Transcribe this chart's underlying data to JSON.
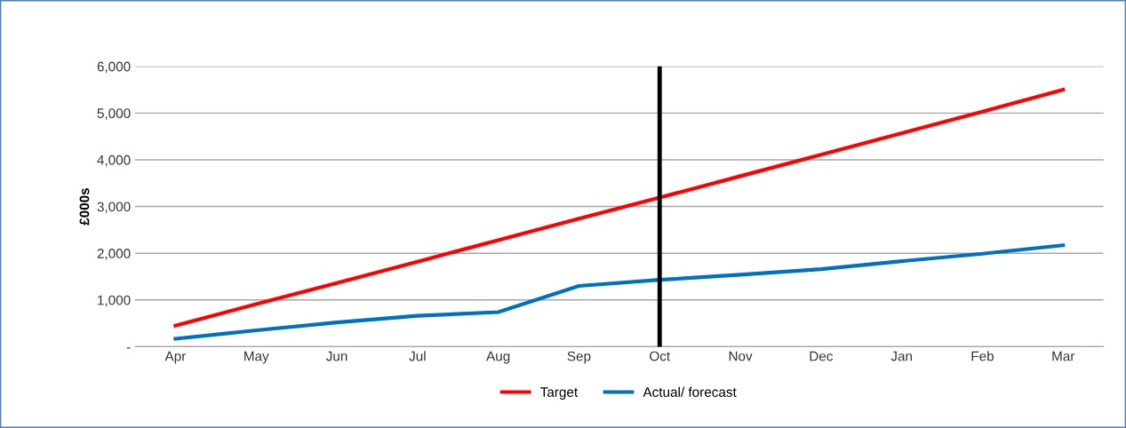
{
  "chart_data": {
    "type": "line",
    "ylabel": "£000s",
    "categories": [
      "Apr",
      "May",
      "Jun",
      "Jul",
      "Aug",
      "Sep",
      "Oct",
      "Nov",
      "Dec",
      "Jan",
      "Feb",
      "Mar"
    ],
    "series": [
      {
        "name": "Target",
        "color": "#ff0000",
        "values": [
          450,
          910,
          1360,
          1820,
          2280,
          2740,
          3190,
          3650,
          4110,
          4570,
          5030,
          5500
        ]
      },
      {
        "name": "Actual/ forecast",
        "color": "#0070c0",
        "values": [
          170,
          350,
          520,
          660,
          740,
          1300,
          1430,
          1540,
          1660,
          1830,
          1990,
          2170
        ]
      }
    ],
    "ylim": [
      0,
      6000
    ],
    "yticks": [
      {
        "value": 0,
        "label": "-"
      },
      {
        "value": 1000,
        "label": "1,000"
      },
      {
        "value": 2000,
        "label": "2,000"
      },
      {
        "value": 3000,
        "label": "3,000"
      },
      {
        "value": 4000,
        "label": "4,000"
      },
      {
        "value": 5000,
        "label": "5,000"
      },
      {
        "value": 6000,
        "label": "6,000"
      }
    ],
    "ref_lines": [
      {
        "axis": "x",
        "value": "Oct",
        "color": "#000000"
      }
    ],
    "grid": "y",
    "legend": "bottom",
    "marker": "none",
    "line_style": "solid"
  }
}
